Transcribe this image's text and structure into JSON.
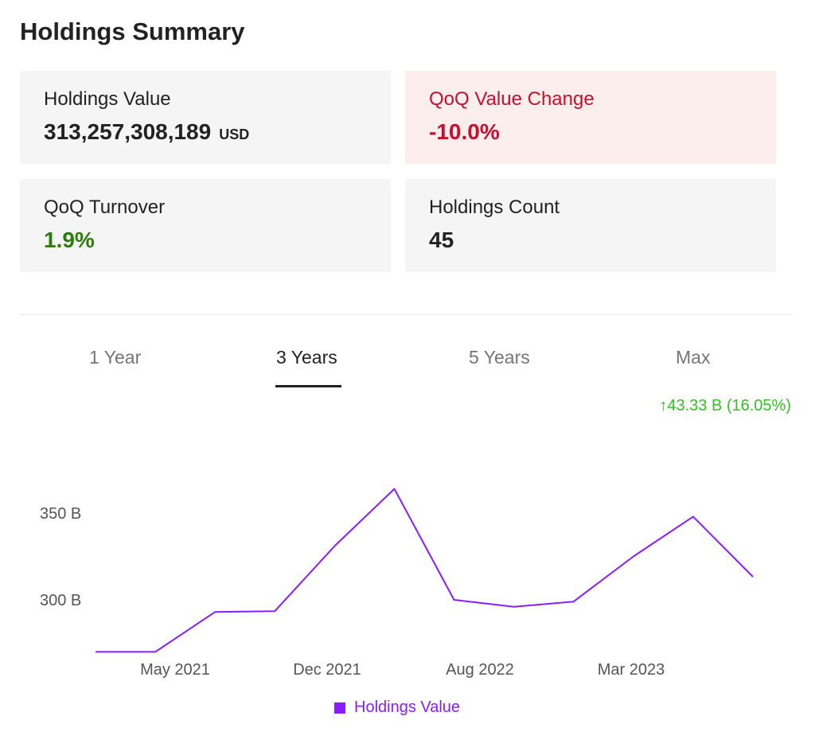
{
  "header": {
    "title": "Holdings Summary"
  },
  "cards": {
    "holdings_value": {
      "label": "Holdings Value",
      "value": "313,257,308,189",
      "unit": "USD"
    },
    "qoq_value_change": {
      "label": "QoQ Value Change",
      "value": "-10.0%"
    },
    "qoq_turnover": {
      "label": "QoQ Turnover",
      "value": "1.9%"
    },
    "holdings_count": {
      "label": "Holdings Count",
      "value": "45"
    }
  },
  "tabs": [
    {
      "label": "1 Year",
      "active": false
    },
    {
      "label": "3 Years",
      "active": true
    },
    {
      "label": "5 Years",
      "active": false
    },
    {
      "label": "Max",
      "active": false
    }
  ],
  "change_indicator": {
    "arrow": "↑",
    "text": "43.33 B (16.05%)"
  },
  "colors": {
    "series": "#8a1cff",
    "positive": "#2fc41f",
    "negative": "#c8102e",
    "turnover_green": "#2e7d0c"
  },
  "chart_data": {
    "type": "line",
    "x": [
      "2020-12-31",
      "2021-03-31",
      "2021-06-30",
      "2021-09-30",
      "2021-12-31",
      "2022-03-31",
      "2022-06-30",
      "2022-09-30",
      "2022-12-31",
      "2023-03-31",
      "2023-06-30",
      "2023-09-30"
    ],
    "x_ticks": [
      "May 2021",
      "Dec 2021",
      "Aug 2022",
      "Mar 2023"
    ],
    "y_ticks": [
      "300 B",
      "350 B"
    ],
    "series": [
      {
        "name": "Holdings Value",
        "values": [
          270,
          270,
          293,
          293.5,
          331,
          364,
          300,
          296,
          299,
          325,
          348,
          313.3
        ]
      }
    ],
    "ylim": [
      270,
      364
    ],
    "grid": false,
    "legend": "bottom-center"
  }
}
